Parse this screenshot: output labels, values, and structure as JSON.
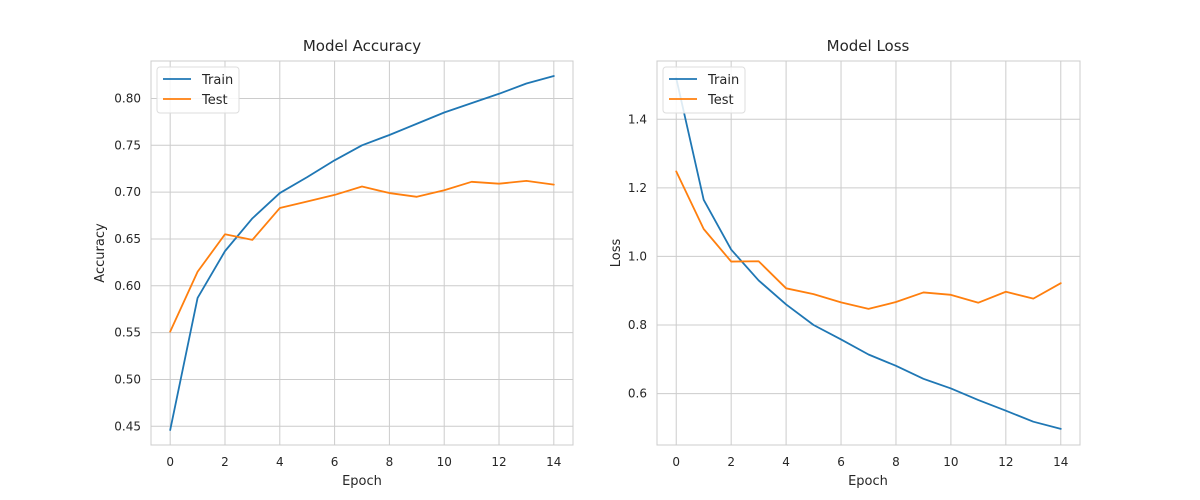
{
  "chart_data": [
    {
      "type": "line",
      "title": "Model Accuracy",
      "xlabel": "Epoch",
      "ylabel": "Accuracy",
      "grid": true,
      "legend_position": "top-left",
      "x": [
        0,
        1,
        2,
        3,
        4,
        5,
        6,
        7,
        8,
        9,
        10,
        11,
        12,
        13,
        14
      ],
      "xlim": [
        -0.7,
        14.7
      ],
      "ylim": [
        0.43,
        0.84
      ],
      "xticks": [
        0,
        2,
        4,
        6,
        8,
        10,
        12,
        14
      ],
      "xtick_labels": [
        "0",
        "2",
        "4",
        "6",
        "8",
        "10",
        "12",
        "14"
      ],
      "yticks": [
        0.45,
        0.5,
        0.55,
        0.6,
        0.65,
        0.7,
        0.75,
        0.8
      ],
      "ytick_labels": [
        "0.45",
        "0.50",
        "0.55",
        "0.60",
        "0.65",
        "0.70",
        "0.75",
        "0.80"
      ],
      "series": [
        {
          "name": "Train",
          "color": "#1f77b4",
          "values": [
            0.446,
            0.587,
            0.637,
            0.672,
            0.699,
            0.716,
            0.734,
            0.75,
            0.761,
            0.773,
            0.785,
            0.795,
            0.805,
            0.816,
            0.824
          ]
        },
        {
          "name": "Test",
          "color": "#ff7f0e",
          "values": [
            0.551,
            0.615,
            0.655,
            0.649,
            0.683,
            0.69,
            0.697,
            0.706,
            0.699,
            0.695,
            0.702,
            0.711,
            0.709,
            0.712,
            0.708
          ]
        }
      ]
    },
    {
      "type": "line",
      "title": "Model Loss",
      "xlabel": "Epoch",
      "ylabel": "Loss",
      "grid": true,
      "legend_position": "top-left",
      "x": [
        0,
        1,
        2,
        3,
        4,
        5,
        6,
        7,
        8,
        9,
        10,
        11,
        12,
        13,
        14
      ],
      "xlim": [
        -0.7,
        14.7
      ],
      "ylim": [
        0.45,
        1.57
      ],
      "xticks": [
        0,
        2,
        4,
        6,
        8,
        10,
        12,
        14
      ],
      "xtick_labels": [
        "0",
        "2",
        "4",
        "6",
        "8",
        "10",
        "12",
        "14"
      ],
      "yticks": [
        0.6,
        0.8,
        1.0,
        1.2,
        1.4
      ],
      "ytick_labels": [
        "0.6",
        "0.8",
        "1.0",
        "1.2",
        "1.4"
      ],
      "series": [
        {
          "name": "Train",
          "color": "#1f77b4",
          "values": [
            1.52,
            1.165,
            1.02,
            0.93,
            0.86,
            0.8,
            0.758,
            0.714,
            0.681,
            0.643,
            0.615,
            0.581,
            0.55,
            0.518,
            0.497
          ]
        },
        {
          "name": "Test",
          "color": "#ff7f0e",
          "values": [
            1.248,
            1.08,
            0.985,
            0.986,
            0.907,
            0.89,
            0.866,
            0.847,
            0.867,
            0.895,
            0.888,
            0.865,
            0.897,
            0.877,
            0.922
          ]
        }
      ]
    }
  ]
}
